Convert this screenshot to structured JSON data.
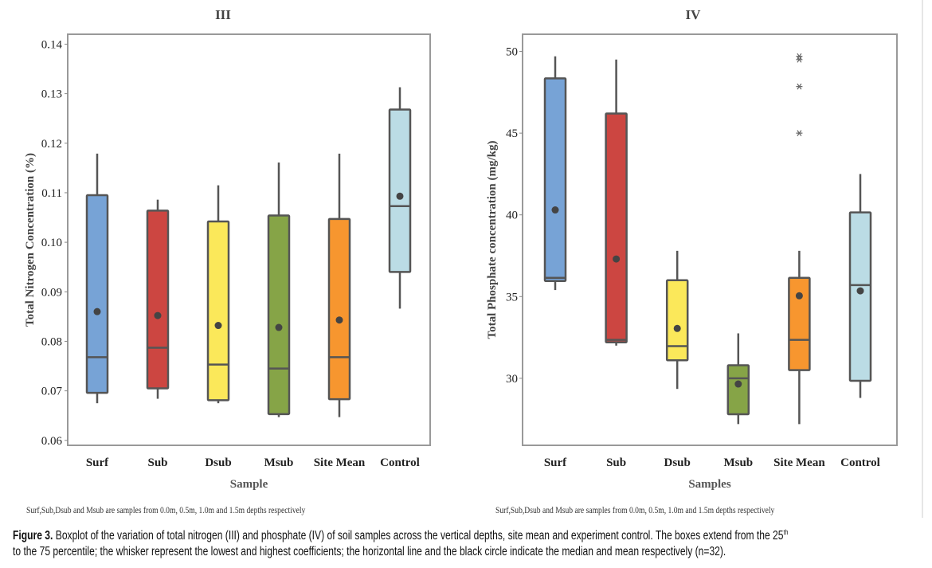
{
  "chart_data": [
    {
      "type": "boxplot",
      "title": "III",
      "xlabel": "Sample",
      "ylabel": "Total Nitrogen Concentration (%)",
      "ylim": [
        0.059,
        0.142
      ],
      "yticks": [
        0.06,
        0.07,
        0.08,
        0.09,
        0.1,
        0.11,
        0.12,
        0.13,
        0.14
      ],
      "ytick_labels": [
        "0.06",
        "0.07",
        "0.08",
        "0.09",
        "0.10",
        "0.11",
        "0.12",
        "0.13",
        "0.14"
      ],
      "categories": [
        "Surf",
        "Sub",
        "Dsub",
        "Msub",
        "Site Mean",
        "Control"
      ],
      "colors": [
        "#77A3D6",
        "#CC4641",
        "#FBE85A",
        "#86A447",
        "#F7962F",
        "#BBDCE5"
      ],
      "series": [
        {
          "name": "Surf",
          "min": 0.0675,
          "q1": 0.0696,
          "median": 0.0768,
          "q3": 0.1095,
          "max": 0.1179,
          "mean": 0.086,
          "outliers": []
        },
        {
          "name": "Sub",
          "min": 0.0684,
          "q1": 0.0705,
          "median": 0.0787,
          "q3": 0.1064,
          "max": 0.1086,
          "mean": 0.0852,
          "outliers": []
        },
        {
          "name": "Dsub",
          "min": 0.0675,
          "q1": 0.0681,
          "median": 0.0753,
          "q3": 0.1042,
          "max": 0.1115,
          "mean": 0.0832,
          "outliers": []
        },
        {
          "name": "Msub",
          "min": 0.0647,
          "q1": 0.0653,
          "median": 0.0745,
          "q3": 0.1054,
          "max": 0.1161,
          "mean": 0.0828,
          "outliers": []
        },
        {
          "name": "Site Mean",
          "min": 0.0647,
          "q1": 0.0683,
          "median": 0.0768,
          "q3": 0.1047,
          "max": 0.1179,
          "mean": 0.0843,
          "outliers": []
        },
        {
          "name": "Control",
          "min": 0.0866,
          "q1": 0.094,
          "median": 0.1073,
          "q3": 0.1268,
          "max": 0.1313,
          "mean": 0.1093,
          "outliers": []
        }
      ],
      "footnote": "Surf,Sub,Dsub and Msub are samples from 0.0m, 0.5m, 1.0m and 1.5m depths respectively"
    },
    {
      "type": "boxplot",
      "title": "IV",
      "xlabel": "Samples",
      "ylabel": "Total Phosphate concentration (mg/kg)",
      "ylim": [
        25.9,
        51.05
      ],
      "yticks": [
        30,
        35,
        40,
        45,
        50
      ],
      "ytick_labels": [
        "30",
        "35",
        "40",
        "45",
        "50"
      ],
      "categories": [
        "Surf",
        "Sub",
        "Dsub",
        "Msub",
        "Site Mean",
        "Control"
      ],
      "colors": [
        "#77A3D6",
        "#CC4641",
        "#FBE85A",
        "#86A447",
        "#F7962F",
        "#BBDCE5"
      ],
      "series": [
        {
          "name": "Surf",
          "min": 35.4,
          "q1": 35.95,
          "median": 36.15,
          "q3": 48.35,
          "max": 49.7,
          "mean": 40.3,
          "outliers": []
        },
        {
          "name": "Sub",
          "min": 32.0,
          "q1": 32.2,
          "median": 32.35,
          "q3": 46.2,
          "max": 49.5,
          "mean": 37.3,
          "outliers": []
        },
        {
          "name": "Dsub",
          "min": 29.35,
          "q1": 31.1,
          "median": 31.97,
          "q3": 36.0,
          "max": 37.8,
          "mean": 33.05,
          "outliers": []
        },
        {
          "name": "Msub",
          "min": 27.2,
          "q1": 27.8,
          "median": 30.0,
          "q3": 30.8,
          "max": 32.75,
          "mean": 29.65,
          "outliers": []
        },
        {
          "name": "Site Mean",
          "min": 27.2,
          "q1": 30.5,
          "median": 32.35,
          "q3": 36.15,
          "max": 37.8,
          "mean": 35.05,
          "outliers": [
            49.7,
            49.5,
            47.85,
            45.0
          ]
        },
        {
          "name": "Control",
          "min": 28.8,
          "q1": 29.85,
          "median": 35.7,
          "q3": 40.15,
          "max": 42.5,
          "mean": 35.35,
          "outliers": []
        }
      ],
      "footnote": "Surf,Sub,Dsub and Msub are samples from 0.0m, 0.5m, 1.0m and 1.5m depths respectively"
    }
  ],
  "caption": {
    "label": "Figure 3.",
    "line1": " Boxplot of the variation of total nitrogen (III) and phosphate (IV) of soil samples across the vertical depths, site mean and experiment control. The boxes extend from the 25",
    "sup": "th",
    "line2": "to the 75 percentile; the whisker represent the lowest and highest coefficients; the horizontal line and the black circle indicate the median and mean respectively (n=32)."
  }
}
